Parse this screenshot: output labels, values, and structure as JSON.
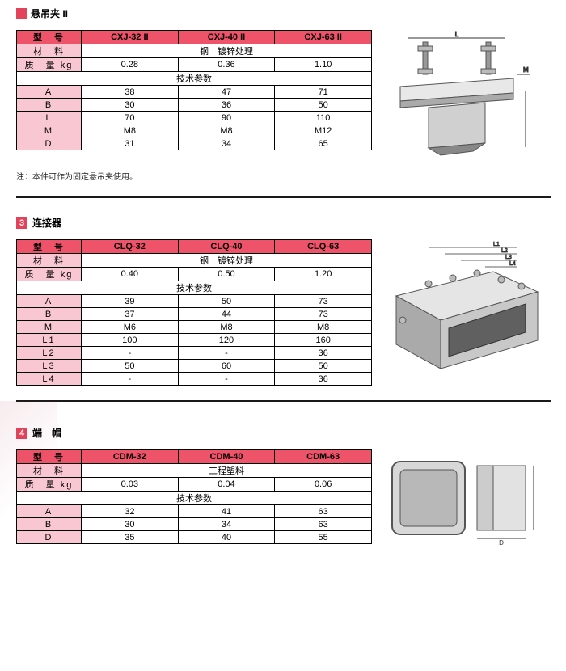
{
  "section1": {
    "title": "悬吊夹 II",
    "note": "注：本件可作为固定悬吊夹使用。",
    "labels": {
      "model": "型　号",
      "material": "材　料",
      "weight": "质　量 kg",
      "params": "技术参数"
    },
    "cols": [
      "CXJ-32 II",
      "CXJ-40 II",
      "CXJ-63 II"
    ],
    "material": "钢　镀锌处理",
    "weight": [
      "0.28",
      "0.36",
      "1.10"
    ],
    "params": [
      {
        "k": "A",
        "v": [
          "38",
          "47",
          "71"
        ]
      },
      {
        "k": "B",
        "v": [
          "30",
          "36",
          "50"
        ]
      },
      {
        "k": "L",
        "v": [
          "70",
          "90",
          "110"
        ]
      },
      {
        "k": "M",
        "v": [
          "M8",
          "M8",
          "M12"
        ]
      },
      {
        "k": "D",
        "v": [
          "31",
          "34",
          "65"
        ]
      }
    ]
  },
  "section2": {
    "num": "3",
    "title": "连接器",
    "labels": {
      "model": "型　号",
      "material": "材　料",
      "weight": "质　量 kg",
      "params": "技术参数"
    },
    "cols": [
      "CLQ-32",
      "CLQ-40",
      "CLQ-63"
    ],
    "material": "钢　镀锌处理",
    "weight": [
      "0.40",
      "0.50",
      "1.20"
    ],
    "params": [
      {
        "k": "A",
        "v": [
          "39",
          "50",
          "73"
        ]
      },
      {
        "k": "B",
        "v": [
          "37",
          "44",
          "73"
        ]
      },
      {
        "k": "M",
        "v": [
          "M6",
          "M8",
          "M8"
        ]
      },
      {
        "k": "L1",
        "v": [
          "100",
          "120",
          "160"
        ]
      },
      {
        "k": "L2",
        "v": [
          "-",
          "-",
          "36"
        ]
      },
      {
        "k": "L3",
        "v": [
          "50",
          "60",
          "50"
        ]
      },
      {
        "k": "L4",
        "v": [
          "-",
          "-",
          "36"
        ]
      }
    ]
  },
  "section3": {
    "num": "4",
    "title": "端　帽",
    "labels": {
      "model": "型　号",
      "material": "材　料",
      "weight": "质　量 kg",
      "params": "技术参数"
    },
    "cols": [
      "CDM-32",
      "CDM-40",
      "CDM-63"
    ],
    "material": "工程塑料",
    "weight": [
      "0.03",
      "0.04",
      "0.06"
    ],
    "params": [
      {
        "k": "A",
        "v": [
          "32",
          "41",
          "63"
        ]
      },
      {
        "k": "B",
        "v": [
          "30",
          "34",
          "63"
        ]
      },
      {
        "k": "D",
        "v": [
          "35",
          "40",
          "55"
        ]
      }
    ]
  },
  "style": {
    "header_bg": "#ef5369",
    "label_bg": "#f8c7d2",
    "border": "#000000"
  }
}
